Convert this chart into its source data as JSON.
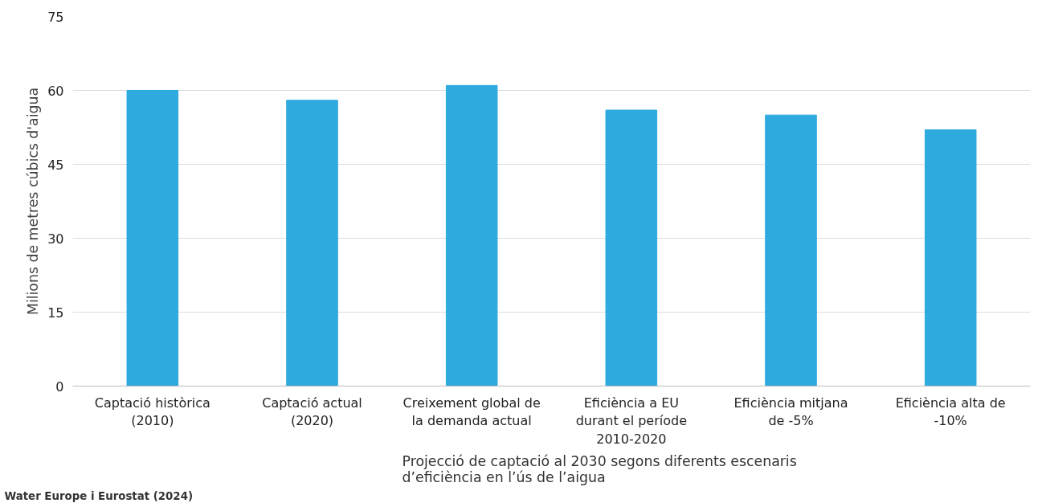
{
  "chart_data": {
    "type": "bar",
    "ylabel": "Milions de metres cúbics d'aigua",
    "categories": [
      "Captació històrica (2010)",
      "Captació actual (2020)",
      "Creixement global de la demanda actual",
      "Eficiència a EU durant el període 2010-2020",
      "Eficiència mitjana de -5%",
      "Eficiència alta de -10%"
    ],
    "values": [
      60,
      58,
      61,
      56,
      55,
      52
    ],
    "color": "#2eaadf",
    "ylim": [
      0,
      75
    ],
    "yticks": [
      0,
      15,
      30,
      45,
      60,
      75
    ],
    "grid": "y",
    "annotations": [
      "Water Europe i Eurostat (2024)",
      "Projecció de captació al 2030 segons diferents escenaris d’eficiència en l’ús de l’aigua"
    ]
  }
}
